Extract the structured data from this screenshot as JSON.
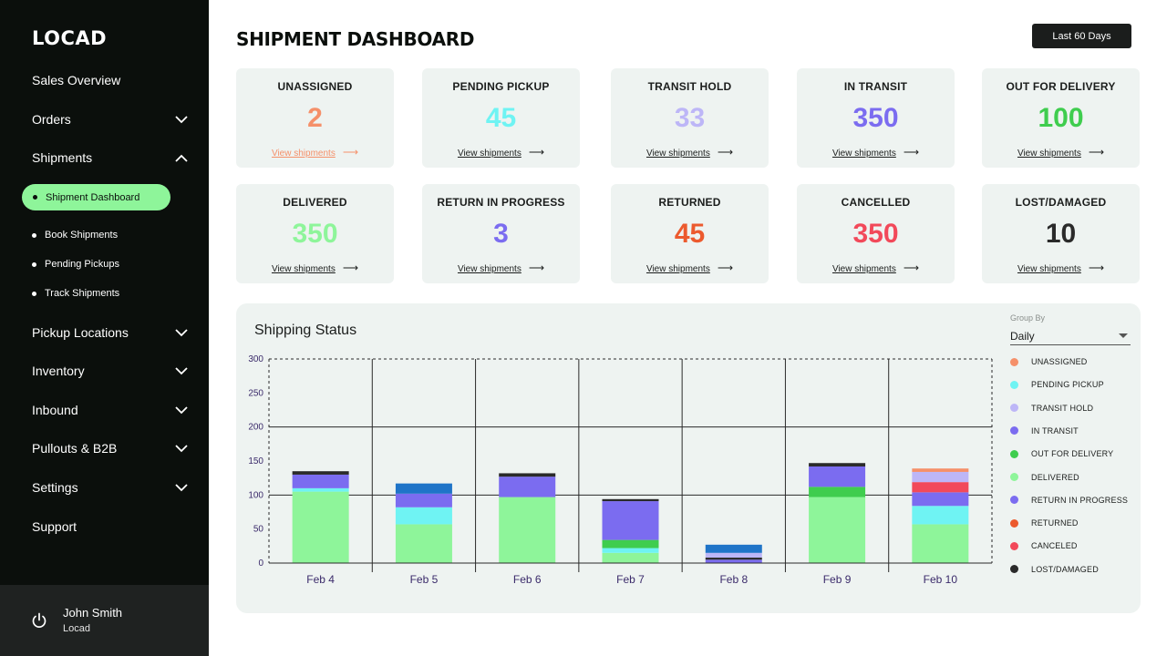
{
  "sidebar": {
    "logo": "LOCAD",
    "nav": [
      {
        "label": "Sales Overview",
        "chevron": "none"
      },
      {
        "label": "Orders",
        "chevron": "down"
      },
      {
        "label": "Shipments",
        "chevron": "up"
      }
    ],
    "active_sub": "Shipment Dashboard",
    "sub_items": [
      "Book Shipments",
      "Pending Pickups",
      "Track Shipments"
    ],
    "nav2": [
      {
        "label": "Pickup Locations",
        "chevron": "down"
      },
      {
        "label": "Inventory",
        "chevron": "down"
      },
      {
        "label": "Inbound",
        "chevron": "down"
      },
      {
        "label": "Pullouts & B2B",
        "chevron": "down"
      },
      {
        "label": "Settings",
        "chevron": "down"
      },
      {
        "label": "Support",
        "chevron": "none"
      }
    ],
    "user": {
      "name": "John Smith",
      "org": "Locad"
    }
  },
  "header": {
    "title": "SHIPMENT DASHBOARD",
    "range_button": "Last 60 Days"
  },
  "cards": [
    {
      "title": "UNASSIGNED",
      "value": "2",
      "color": "#f5906a",
      "link": "View shipments",
      "link_color": "#f5906a"
    },
    {
      "title": "PENDING PICKUP",
      "value": "45",
      "color": "#6ff3f3",
      "link": "View shipments",
      "link_color": "#1b1d1c"
    },
    {
      "title": "TRANSIT HOLD",
      "value": "33",
      "color": "#bdb6f7",
      "link": "View shipments",
      "link_color": "#1b1d1c"
    },
    {
      "title": "IN TRANSIT",
      "value": "350",
      "color": "#7b6cf0",
      "link": "View shipments",
      "link_color": "#1b1d1c"
    },
    {
      "title": "OUT FOR DELIVERY",
      "value": "100",
      "color": "#3fcd4e",
      "link": "View shipments",
      "link_color": "#1b1d1c"
    },
    {
      "title": "DELIVERED",
      "value": "350",
      "color": "#8ef59a",
      "link": "View shipments",
      "link_color": "#1b1d1c"
    },
    {
      "title": "RETURN IN PROGRESS",
      "value": "3",
      "color": "#7b6cf0",
      "link": "View shipments",
      "link_color": "#1b1d1c"
    },
    {
      "title": "RETURNED",
      "value": "45",
      "color": "#ec5a2e",
      "link": "View shipments",
      "link_color": "#1b1d1c"
    },
    {
      "title": "CANCELLED",
      "value": "350",
      "color": "#f2495a",
      "link": "View shipments",
      "link_color": "#1b1d1c"
    },
    {
      "title": "LOST/DAMAGED",
      "value": "10",
      "color": "#2a2a2a",
      "link": "View shipments",
      "link_color": "#1b1d1c"
    }
  ],
  "chart_panel": {
    "title": "Shipping Status",
    "group_by_label": "Group By",
    "group_by_value": "Daily"
  },
  "chart_data": {
    "type": "bar",
    "stacked": true,
    "title": "Shipping Status",
    "xlabel": "",
    "ylabel": "",
    "ylim": [
      0,
      300
    ],
    "yticks": [
      0,
      50,
      100,
      150,
      200,
      250,
      300
    ],
    "categories": [
      "Feb 4",
      "Feb 5",
      "Feb 6",
      "Feb 7",
      "Feb 8",
      "Feb 9",
      "Feb 10"
    ],
    "legend_position": "right",
    "series": [
      {
        "name": "DELIVERED",
        "color": "#8ef59a",
        "values": [
          105,
          57,
          97,
          15,
          0,
          97,
          57
        ]
      },
      {
        "name": "PENDING PICKUP",
        "color": "#6ff3f3",
        "values": [
          5,
          25,
          0,
          7,
          0,
          0,
          27
        ]
      },
      {
        "name": "OUT FOR DELIVERY",
        "color": "#3fcd4e",
        "values": [
          0,
          0,
          0,
          12,
          0,
          15,
          0
        ]
      },
      {
        "name": "IN TRANSIT",
        "color": "#7b6cf0",
        "values": [
          20,
          20,
          30,
          57,
          5,
          30,
          20
        ]
      },
      {
        "name": "LOST/DAMAGED",
        "color": "#2a2a2a",
        "values": [
          5,
          0,
          5,
          3,
          3,
          5,
          0
        ]
      },
      {
        "name": "RETURNED",
        "color": "#ec5a2e",
        "values": [
          0,
          0,
          0,
          0,
          0,
          0,
          0
        ]
      },
      {
        "name": "CANCELED",
        "color": "#f2495a",
        "values": [
          0,
          0,
          0,
          0,
          0,
          0,
          15
        ]
      },
      {
        "name": "TRANSIT HOLD",
        "color": "#bdb6f7",
        "values": [
          0,
          0,
          0,
          0,
          7,
          0,
          15
        ]
      },
      {
        "name": "UNASSIGNED",
        "color": "#f5906a",
        "values": [
          0,
          0,
          0,
          0,
          0,
          0,
          5
        ]
      },
      {
        "name": "RETURN IN PROGRESS",
        "color": "#1f74c8",
        "values": [
          0,
          15,
          0,
          0,
          12,
          0,
          0
        ]
      }
    ],
    "legend": [
      {
        "name": "UNASSIGNED",
        "color": "#f5906a"
      },
      {
        "name": "PENDING PICKUP",
        "color": "#6ff3f3"
      },
      {
        "name": "TRANSIT HOLD",
        "color": "#bdb6f7"
      },
      {
        "name": "IN TRANSIT",
        "color": "#7b6cf0"
      },
      {
        "name": "OUT FOR DELIVERY",
        "color": "#3fcd4e"
      },
      {
        "name": "DELIVERED",
        "color": "#8ef59a"
      },
      {
        "name": "RETURN IN PROGRESS",
        "color": "#7b6cf0"
      },
      {
        "name": "RETURNED",
        "color": "#ec5a2e"
      },
      {
        "name": "CANCELED",
        "color": "#f2495a"
      },
      {
        "name": "LOST/DAMAGED",
        "color": "#2a2a2a"
      }
    ]
  }
}
